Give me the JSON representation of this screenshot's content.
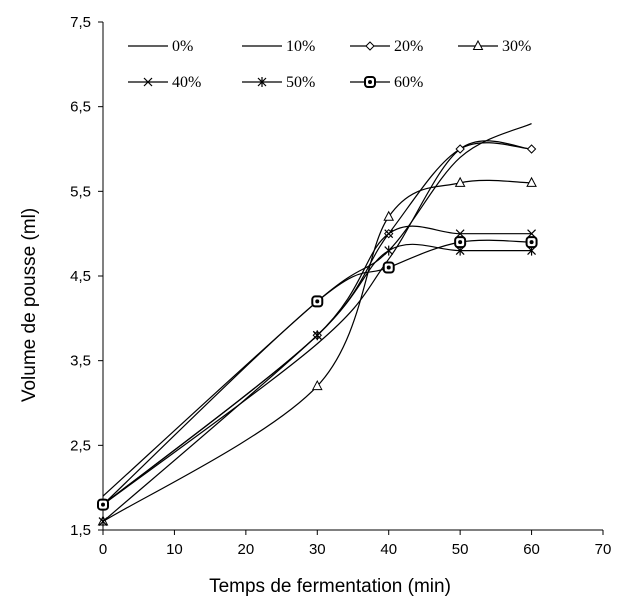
{
  "chart_data": {
    "type": "line",
    "title": "",
    "xlabel": "Temps de fermentation (min)",
    "ylabel": "Volume de pousse (ml)",
    "xlim": [
      0,
      70
    ],
    "ylim": [
      1.5,
      7.5
    ],
    "xticks": [
      0,
      10,
      20,
      30,
      40,
      50,
      60,
      70
    ],
    "yticks": [
      1.5,
      2.5,
      3.5,
      4.5,
      5.5,
      6.5,
      7.5
    ],
    "xtick_labels": [
      "0",
      "10",
      "20",
      "30",
      "40",
      "50",
      "60",
      "70"
    ],
    "ytick_labels": [
      "1,5",
      "2,5",
      "3,5",
      "4,5",
      "5,5",
      "6,5",
      "7,5"
    ],
    "grid": false,
    "legend": "top, inside plot, two rows",
    "x": [
      0,
      30,
      40,
      50,
      60
    ],
    "series": [
      {
        "name": "0%",
        "marker": "none",
        "values": [
          1.9,
          4.2,
          4.8,
          5.9,
          6.3
        ]
      },
      {
        "name": "10%",
        "marker": "none",
        "values": [
          1.8,
          3.7,
          4.7,
          6.0,
          6.0
        ]
      },
      {
        "name": "20%",
        "marker": "diamond",
        "values": [
          1.8,
          3.8,
          5.0,
          6.0,
          6.0
        ]
      },
      {
        "name": "30%",
        "marker": "triangle",
        "values": [
          1.6,
          3.2,
          5.2,
          5.6,
          5.6
        ]
      },
      {
        "name": "40%",
        "marker": "x",
        "values": [
          1.8,
          3.8,
          5.0,
          5.0,
          5.0
        ]
      },
      {
        "name": "50%",
        "marker": "star",
        "values": [
          1.6,
          3.8,
          4.8,
          4.8,
          4.8
        ]
      },
      {
        "name": "60%",
        "marker": "square-circle",
        "values": [
          1.8,
          4.2,
          4.6,
          4.9,
          4.9
        ]
      }
    ]
  }
}
